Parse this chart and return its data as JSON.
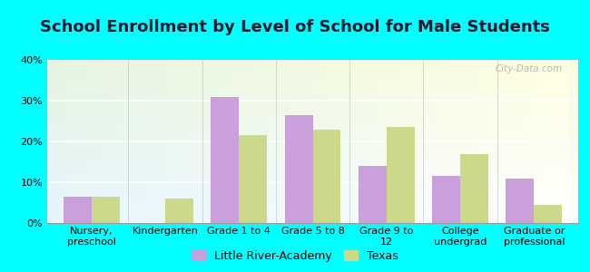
{
  "title": "School Enrollment by Level of School for Male Students",
  "categories": [
    "Nursery,\npreschool",
    "Kindergarten",
    "Grade 1 to 4",
    "Grade 5 to 8",
    "Grade 9 to\n12",
    "College\nundergrad",
    "Graduate or\nprofessional"
  ],
  "lra_values": [
    6.5,
    0,
    31,
    26.5,
    14,
    11.5,
    11
  ],
  "texas_values": [
    6.5,
    6.0,
    21.5,
    23,
    23.5,
    17,
    4.5
  ],
  "lra_color": "#c9a0dc",
  "texas_color": "#cdd98a",
  "background_color": "#00ffff",
  "ylim": [
    0,
    40
  ],
  "yticks": [
    0,
    10,
    20,
    30,
    40
  ],
  "ytick_labels": [
    "0%",
    "10%",
    "20%",
    "30%",
    "40%"
  ],
  "legend_labels": [
    "Little River-Academy",
    "Texas"
  ],
  "title_fontsize": 13,
  "tick_fontsize": 8,
  "legend_fontsize": 9,
  "bar_width": 0.38,
  "watermark": "City-Data.com"
}
